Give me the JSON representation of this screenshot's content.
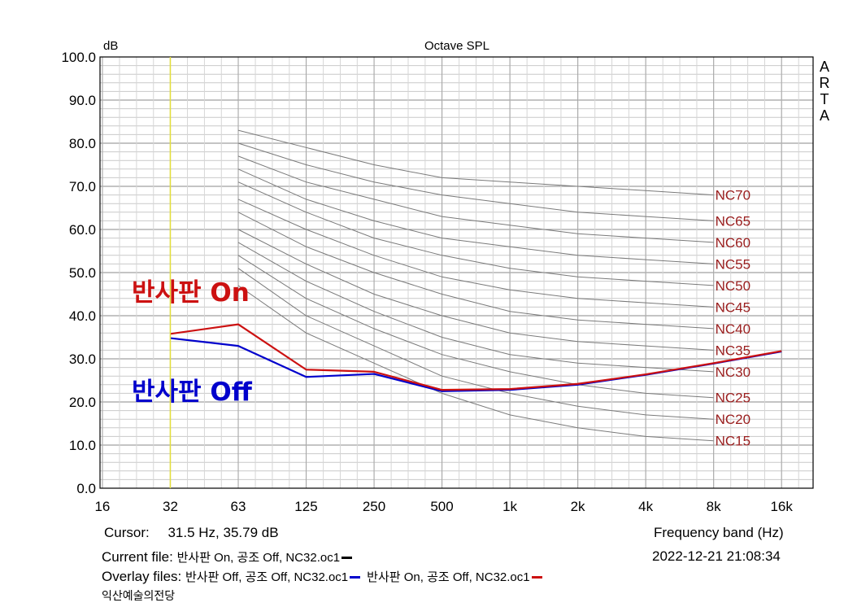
{
  "chart_data": {
    "type": "line",
    "title": "Octave SPL",
    "ylabel": "dB",
    "xlabel": "Frequency band (Hz)",
    "side_label": "ARTA",
    "y_ticks": [
      "100.0",
      "90.0",
      "80.0",
      "70.0",
      "60.0",
      "50.0",
      "40.0",
      "30.0",
      "20.0",
      "10.0",
      "0.0"
    ],
    "ylim": [
      0,
      100
    ],
    "x_ticks": [
      "16",
      "32",
      "63",
      "125",
      "250",
      "500",
      "1k",
      "2k",
      "4k",
      "8k",
      "16k"
    ],
    "x_scale": "octave bands (log)",
    "grid": true,
    "cursor_band": "32",
    "series": [
      {
        "name": "반사판 Off, 공조 Off, NC32.oc1",
        "color": "#0000cc",
        "x": [
          "32",
          "63",
          "125",
          "250",
          "500",
          "1k",
          "2k",
          "4k",
          "8k",
          "16k"
        ],
        "values": [
          34.8,
          33.0,
          25.8,
          26.5,
          22.5,
          22.8,
          24.0,
          26.3,
          28.9,
          31.7
        ]
      },
      {
        "name": "반사판 On, 공조 Off, NC32.oc1",
        "color": "#cc1111",
        "x": [
          "32",
          "63",
          "125",
          "250",
          "500",
          "1k",
          "2k",
          "4k",
          "8k",
          "16k"
        ],
        "values": [
          35.79,
          38.0,
          27.5,
          27.0,
          22.8,
          23.0,
          24.2,
          26.4,
          29.0,
          31.8
        ]
      }
    ],
    "nc_curves": {
      "color": "#9a1e1e",
      "bands": [
        "63",
        "125",
        "250",
        "500",
        "1k",
        "2k",
        "4k",
        "8k"
      ],
      "curves": [
        {
          "label": "NC70",
          "values": [
            83,
            79,
            75,
            72,
            71,
            70,
            69,
            68
          ]
        },
        {
          "label": "NC65",
          "values": [
            80,
            75,
            71,
            68,
            66,
            64,
            63,
            62
          ]
        },
        {
          "label": "NC60",
          "values": [
            77,
            71,
            67,
            63,
            61,
            59,
            58,
            57
          ]
        },
        {
          "label": "NC55",
          "values": [
            74,
            67,
            62,
            58,
            56,
            54,
            53,
            52
          ]
        },
        {
          "label": "NC50",
          "values": [
            71,
            64,
            58,
            54,
            51,
            49,
            48,
            47
          ]
        },
        {
          "label": "NC45",
          "values": [
            67,
            60,
            54,
            49,
            46,
            44,
            43,
            42
          ]
        },
        {
          "label": "NC40",
          "values": [
            64,
            56,
            50,
            45,
            41,
            39,
            38,
            37
          ]
        },
        {
          "label": "NC35",
          "values": [
            60,
            52,
            45,
            40,
            36,
            34,
            33,
            32
          ]
        },
        {
          "label": "NC30",
          "values": [
            57,
            48,
            41,
            35,
            31,
            29,
            28,
            27
          ]
        },
        {
          "label": "NC25",
          "values": [
            54,
            44,
            37,
            31,
            27,
            24,
            22,
            21
          ]
        },
        {
          "label": "NC20",
          "values": [
            51,
            40,
            33,
            26,
            22,
            19,
            17,
            16
          ]
        },
        {
          "label": "NC15",
          "values": [
            47,
            36,
            29,
            22,
            17,
            14,
            12,
            11
          ]
        }
      ]
    },
    "annotations": [
      {
        "text": "반사판 On",
        "color": "#cc1111"
      },
      {
        "text": "반사판 Off",
        "color": "#0000cc"
      }
    ]
  },
  "footer": {
    "cursor_label": "Cursor:",
    "cursor_value": "31.5 Hz, 35.79 dB",
    "axis_caption": "Frequency band (Hz)",
    "current_file_label": "Current file:",
    "current_file_value": "반사판 On, 공조 Off, NC32.oc1",
    "current_file_swatch": "#000000",
    "timestamp": "2022-12-21   21:08:34",
    "overlay_label": "Overlay files:",
    "overlay_1": "반사판 Off, 공조 Off, NC32.oc1",
    "overlay_1_color": "#0000cc",
    "overlay_2": "반사판 On, 공조 Off, NC32.oc1",
    "overlay_2_color": "#cc1111",
    "venue": "익산예술의전당"
  }
}
